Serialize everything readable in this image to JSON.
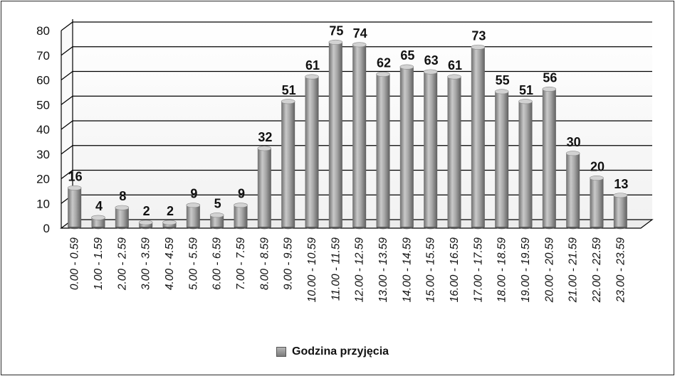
{
  "chart_data": {
    "type": "bar",
    "style": "3d-cylinder",
    "categories": [
      "0.00 - 0.59",
      "1.00 - 1.59",
      "2.00 - 2.59",
      "3.00 - 3.59",
      "4.00 - 4.59",
      "5.00 - 5.59",
      "6.00 - 6.59",
      "7.00 - 7.59",
      "8.00 - 8.59",
      "9.00 - 9.59",
      "10.00 - 10.59",
      "11.00 - 11.59",
      "12.00 - 12.59",
      "13.00 - 13.59",
      "14.00 - 14.59",
      "15.00 - 15.59",
      "16.00 - 16.59",
      "17.00 - 17.59",
      "18.00 - 18.59",
      "19.00 - 19.59",
      "20.00 - 20.59",
      "21.00 - 21.59",
      "22.00 - 22.59",
      "23.00 - 23.59"
    ],
    "series": [
      {
        "name": "Godzina przyjęcia",
        "values": [
          16,
          4,
          8,
          2,
          2,
          9,
          5,
          9,
          32,
          51,
          61,
          75,
          74,
          62,
          65,
          63,
          61,
          73,
          55,
          51,
          56,
          30,
          20,
          13
        ]
      }
    ],
    "data_labels": [
      "16",
      "4",
      "8",
      "2",
      "2",
      "9",
      "5",
      "9",
      "32",
      "51",
      "61",
      "75",
      "74",
      "62",
      "65",
      "63",
      "61",
      "73",
      "55",
      "51",
      "56",
      "30",
      "20",
      "13"
    ],
    "yticks": [
      "0",
      "10",
      "20",
      "30",
      "40",
      "50",
      "60",
      "70",
      "80"
    ],
    "ylim": [
      0,
      80
    ],
    "grid": true,
    "legend_position": "bottom",
    "colors": {
      "bar": "#9a9a9a",
      "grid": "#000000"
    }
  }
}
